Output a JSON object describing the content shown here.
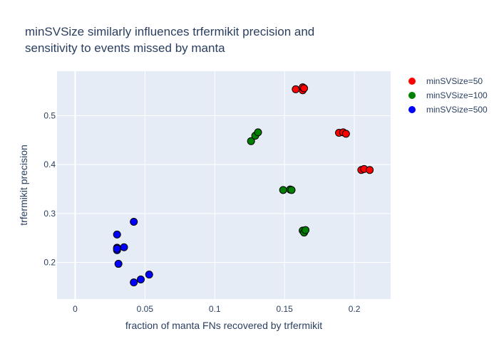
{
  "chart_data": {
    "type": "scatter",
    "title_lines": [
      "minSVSize similarly influences trfermikit precision and",
      "sensitivity to events missed by manta"
    ],
    "xlabel": "fraction of manta FNs recovered by trfermikit",
    "ylabel": "trfermikit precision",
    "xlim": [
      -0.013,
      0.226
    ],
    "ylim": [
      0.125,
      0.591
    ],
    "x_ticks": [
      0,
      0.05,
      0.1,
      0.15,
      0.2
    ],
    "x_tick_labels": [
      "0",
      "0.05",
      "0.1",
      "0.15",
      "0.2"
    ],
    "y_ticks": [
      0.2,
      0.3,
      0.4,
      0.5
    ],
    "y_tick_labels": [
      "0.2",
      "0.3",
      "0.4",
      "0.5"
    ],
    "grid": true,
    "legend_position": "top-right",
    "series": [
      {
        "name": "minSVSize=50",
        "color": "#ff0000",
        "points": [
          [
            0.158,
            0.554
          ],
          [
            0.163,
            0.552
          ],
          [
            0.163,
            0.558
          ],
          [
            0.164,
            0.556
          ],
          [
            0.189,
            0.465
          ],
          [
            0.192,
            0.466
          ],
          [
            0.194,
            0.463
          ],
          [
            0.205,
            0.389
          ],
          [
            0.207,
            0.391
          ],
          [
            0.211,
            0.389
          ]
        ]
      },
      {
        "name": "minSVSize=100",
        "color": "#008000",
        "points": [
          [
            0.126,
            0.448
          ],
          [
            0.129,
            0.459
          ],
          [
            0.131,
            0.466
          ],
          [
            0.149,
            0.348
          ],
          [
            0.154,
            0.349
          ],
          [
            0.155,
            0.348
          ],
          [
            0.163,
            0.265
          ],
          [
            0.164,
            0.261
          ],
          [
            0.165,
            0.266
          ]
        ]
      },
      {
        "name": "minSVSize=500",
        "color": "#0000ff",
        "points": [
          [
            0.03,
            0.257
          ],
          [
            0.03,
            0.23
          ],
          [
            0.03,
            0.225
          ],
          [
            0.03,
            0.228
          ],
          [
            0.035,
            0.231
          ],
          [
            0.031,
            0.197
          ],
          [
            0.042,
            0.283
          ],
          [
            0.042,
            0.159
          ],
          [
            0.047,
            0.165
          ],
          [
            0.053,
            0.175
          ]
        ]
      }
    ]
  }
}
